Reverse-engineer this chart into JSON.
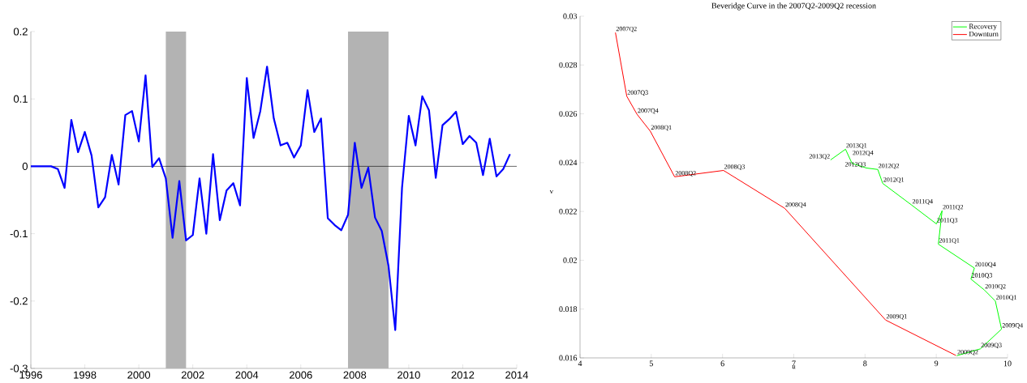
{
  "chart_data": [
    {
      "type": "line",
      "x": [
        1996,
        1996.25,
        1996.5,
        1996.75,
        1997,
        1997.25,
        1997.5,
        1997.75,
        1998,
        1998.25,
        1998.5,
        1998.75,
        1999,
        1999.25,
        1999.5,
        1999.75,
        2000,
        2000.25,
        2000.5,
        2000.75,
        2001,
        2001.25,
        2001.5,
        2001.75,
        2002,
        2002.25,
        2002.5,
        2002.75,
        2003,
        2003.25,
        2003.5,
        2003.75,
        2004,
        2004.25,
        2004.5,
        2004.75,
        2005,
        2005.25,
        2005.5,
        2005.75,
        2006,
        2006.25,
        2006.5,
        2006.75,
        2007,
        2007.25,
        2007.5,
        2007.75,
        2008,
        2008.25,
        2008.5,
        2008.75,
        2009,
        2009.25,
        2009.5,
        2009.75,
        2010,
        2010.25,
        2010.5,
        2010.75,
        2011,
        2011.25,
        2011.5,
        2011.75,
        2012,
        2012.25,
        2012.5,
        2012.75,
        2013,
        2013.25,
        2013.5,
        2013.75
      ],
      "series": [
        {
          "color": "#0000ff",
          "values": [
            0,
            0,
            0,
            0,
            -0.004,
            -0.032,
            0.069,
            0.021,
            0.051,
            0.016,
            -0.061,
            -0.046,
            0.017,
            -0.027,
            0.076,
            0.082,
            0.037,
            0.135,
            -0.001,
            0.012,
            -0.018,
            -0.106,
            -0.022,
            -0.11,
            -0.102,
            -0.018,
            -0.1,
            0.018,
            -0.08,
            -0.036,
            -0.025,
            -0.058,
            0.131,
            0.042,
            0.082,
            0.148,
            0.071,
            0.031,
            0.035,
            0.013,
            0.031,
            0.113,
            0.051,
            0.071,
            -0.077,
            -0.087,
            -0.095,
            -0.072,
            0.035,
            -0.032,
            -0.002,
            -0.076,
            -0.096,
            -0.148,
            -0.243,
            -0.032,
            0.075,
            0.031,
            0.104,
            0.083,
            -0.017,
            0.061,
            0.07,
            0.081,
            0.033,
            0.045,
            0.035,
            -0.013,
            0.041,
            -0.015,
            -0.004,
            0.018
          ]
        }
      ],
      "xlim": [
        1996,
        2014
      ],
      "xticks": [
        1996,
        1998,
        2000,
        2002,
        2004,
        2006,
        2008,
        2010,
        2012,
        2014
      ],
      "ylim": [
        -0.3,
        0.2
      ],
      "yticks": [
        -0.3,
        -0.2,
        -0.1,
        0,
        0.1,
        0.2
      ],
      "ref_lines": [
        {
          "axis": "y",
          "value": 0,
          "color": "#000000"
        }
      ],
      "bands": [
        {
          "axis": "x",
          "from": 2001,
          "to": 2001.75,
          "color": "#b3b3b3"
        },
        {
          "axis": "x",
          "from": 2007.75,
          "to": 2009.25,
          "color": "#b3b3b3"
        }
      ]
    },
    {
      "type": "line",
      "title": "Beveridge Curve in the 2007Q2-2009Q2 recession",
      "xlabel": "u",
      "ylabel": "v",
      "series": [
        {
          "name": "Recovery",
          "color": "#00ff00",
          "x": [
            9.288,
            9.619,
            9.916,
            9.829,
            9.676,
            9.486,
            9.535,
            9.029,
            9.082,
            9.002,
            8.655,
            8.248,
            8.179,
            8.019,
            7.817,
            7.726,
            7.516
          ],
          "values": [
            0.01609,
            0.01637,
            0.01718,
            0.01833,
            0.01878,
            0.01923,
            0.01968,
            0.02066,
            0.02203,
            0.02149,
            0.02226,
            0.02315,
            0.02372,
            0.02378,
            0.02397,
            0.02455,
            0.02411
          ]
        },
        {
          "name": "Downturn",
          "color": "#ff0000",
          "x": [
            4.497,
            4.656,
            4.8,
            4.986,
            5.328,
            6.014,
            6.872,
            8.289,
            9.276
          ],
          "values": [
            0.02933,
            0.02672,
            0.02598,
            0.02529,
            0.02342,
            0.02368,
            0.02213,
            0.01755,
            0.0161
          ]
        }
      ],
      "legend": "top right",
      "annotations": [
        {
          "text": "2007Q2",
          "x": 4.497,
          "y": 0.02933
        },
        {
          "text": "2007Q3",
          "x": 4.656,
          "y": 0.02672
        },
        {
          "text": "2007Q4",
          "x": 4.8,
          "y": 0.02598
        },
        {
          "text": "2008Q1",
          "x": 4.986,
          "y": 0.02529
        },
        {
          "text": "2008Q2",
          "x": 5.328,
          "y": 0.02342
        },
        {
          "text": "2008Q3",
          "x": 6.014,
          "y": 0.02368
        },
        {
          "text": "2008Q4",
          "x": 6.872,
          "y": 0.02213
        },
        {
          "text": "2009Q1",
          "x": 8.289,
          "y": 0.01755
        },
        {
          "text": "2009Q2",
          "x": 9.288,
          "y": 0.01609
        },
        {
          "text": "2009Q3",
          "x": 9.619,
          "y": 0.01637
        },
        {
          "text": "2009Q4",
          "x": 9.916,
          "y": 0.01718
        },
        {
          "text": "2010Q1",
          "x": 9.829,
          "y": 0.01833
        },
        {
          "text": "2010Q2",
          "x": 9.676,
          "y": 0.01878
        },
        {
          "text": "2010Q3",
          "x": 9.486,
          "y": 0.01923
        },
        {
          "text": "2010Q4",
          "x": 9.535,
          "y": 0.01968
        },
        {
          "text": "2011Q1",
          "x": 9.029,
          "y": 0.02066
        },
        {
          "text": "2011Q2",
          "x": 9.082,
          "y": 0.02203
        },
        {
          "text": "2011Q3",
          "x": 9.002,
          "y": 0.02149
        },
        {
          "text": "2011Q4",
          "x": 8.655,
          "y": 0.02226
        },
        {
          "text": "2012Q1",
          "x": 8.248,
          "y": 0.02315
        },
        {
          "text": "2012Q2",
          "x": 8.179,
          "y": 0.02372
        },
        {
          "text": "2012Q3",
          "x": 8.019,
          "y": 0.02378
        },
        {
          "text": "2012Q4",
          "x": 7.817,
          "y": 0.02397
        },
        {
          "text": "2013Q1",
          "x": 7.726,
          "y": 0.02455
        },
        {
          "text": "2013Q2",
          "x": 7.516,
          "y": 0.02411
        }
      ],
      "xlim": [
        4,
        10
      ],
      "xticks": [
        4,
        5,
        6,
        7,
        8,
        9,
        10
      ],
      "ylim": [
        0.016,
        0.03
      ],
      "yticks": [
        0.016,
        0.018,
        0.02,
        0.022,
        0.024,
        0.026,
        0.028,
        0.03
      ]
    }
  ]
}
